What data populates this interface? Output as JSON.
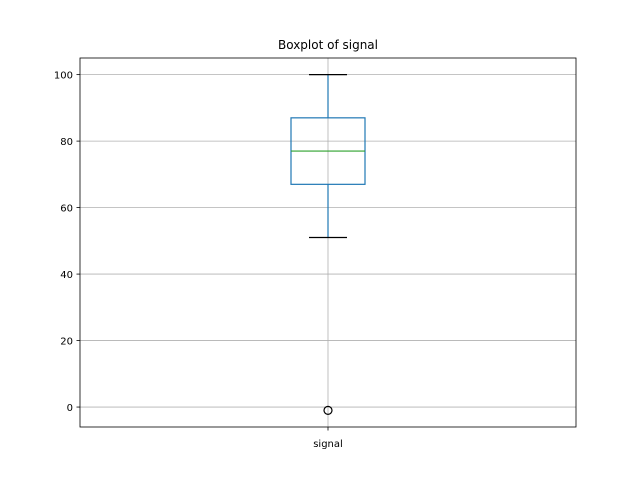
{
  "chart_data": {
    "type": "box",
    "title": "Boxplot of signal",
    "xlabel": "",
    "ylabel": "",
    "categories": [
      "signal"
    ],
    "ylim": [
      -6,
      105
    ],
    "yticks": [
      0,
      20,
      40,
      60,
      80,
      100
    ],
    "grid": true,
    "series": [
      {
        "name": "signal",
        "whisker_low": 51,
        "q1": 67,
        "median": 77,
        "q3": 87,
        "whisker_high": 100,
        "outliers": [
          -1
        ]
      }
    ],
    "colors": {
      "box": "#1f77b4",
      "median": "#2ca02c",
      "whisker": "#1f77b4",
      "cap": "#000000",
      "flier": "#000000",
      "grid": "#b0b0b0",
      "axes": "#000000"
    }
  }
}
